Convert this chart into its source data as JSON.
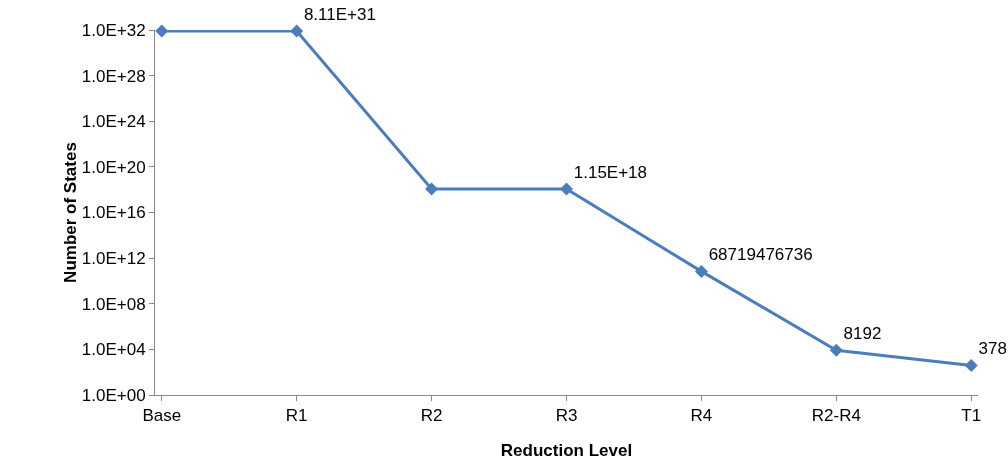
{
  "chart_data": {
    "type": "line",
    "xlabel": "Reduction Level",
    "ylabel": "Number of States",
    "categories": [
      "Base",
      "R1",
      "R2",
      "R3",
      "R4",
      "R2-R4",
      "T1"
    ],
    "series": [
      {
        "color": "#4a7ebb",
        "values": [
          8.11e+31,
          8.11e+31,
          1.15e+18,
          1.15e+18,
          68719476736,
          8192,
          378
        ],
        "value_labels": [
          null,
          "8.11E+31",
          null,
          "1.15E+18",
          "68719476736",
          "8192",
          "378"
        ]
      }
    ],
    "log": "y",
    "ylim": [
      1,
      1e+32
    ],
    "yticks": [
      {
        "value": 1,
        "label": "1.0E+00"
      },
      {
        "value": 10000.0,
        "label": "1.0E+04"
      },
      {
        "value": 100000000.0,
        "label": "1.0E+08"
      },
      {
        "value": 1000000000000.0,
        "label": "1.0E+12"
      },
      {
        "value": 1e+16,
        "label": "1.0E+16"
      },
      {
        "value": 1e+20,
        "label": "1.0E+20"
      },
      {
        "value": 1e+24,
        "label": "1.0E+24"
      },
      {
        "value": 1e+28,
        "label": "1.0E+28"
      },
      {
        "value": 1e+32,
        "label": "1.0E+32"
      }
    ],
    "grid": false,
    "marker": "diamond",
    "line_style": "solid"
  }
}
